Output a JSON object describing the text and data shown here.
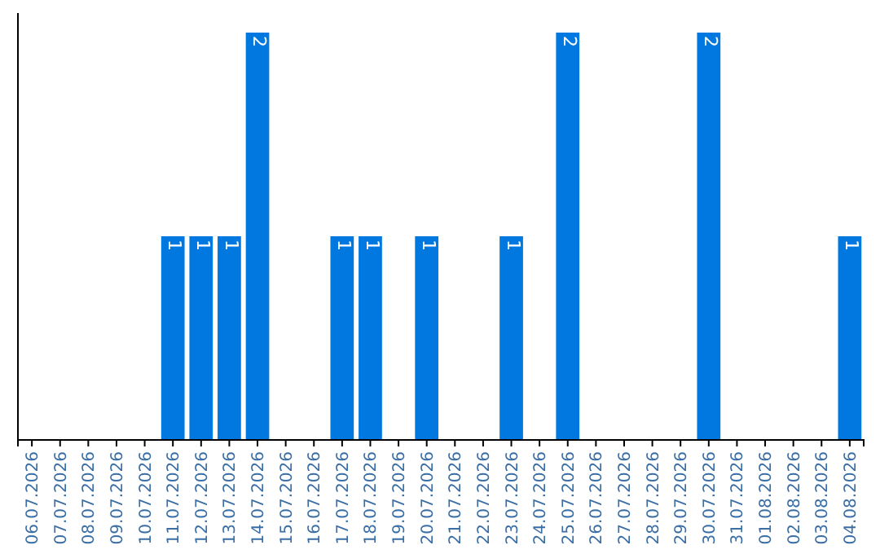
{
  "chart_data": {
    "type": "bar",
    "categories": [
      "06.07.2026",
      "07.07.2026",
      "08.07.2026",
      "09.07.2026",
      "10.07.2026",
      "11.07.2026",
      "12.07.2026",
      "13.07.2026",
      "14.07.2026",
      "15.07.2026",
      "16.07.2026",
      "17.07.2026",
      "18.07.2026",
      "19.07.2026",
      "20.07.2026",
      "21.07.2026",
      "22.07.2026",
      "23.07.2026",
      "24.07.2026",
      "25.07.2026",
      "26.07.2026",
      "27.07.2026",
      "28.07.2026",
      "29.07.2026",
      "30.07.2026",
      "31.07.2026",
      "01.08.2026",
      "02.08.2026",
      "03.08.2026",
      "04.08.2026"
    ],
    "values": [
      0,
      0,
      0,
      0,
      0,
      1,
      1,
      1,
      2,
      0,
      0,
      1,
      1,
      0,
      1,
      0,
      0,
      1,
      0,
      2,
      0,
      0,
      0,
      0,
      2,
      0,
      0,
      0,
      0,
      1
    ],
    "value_labels": [
      null,
      null,
      null,
      null,
      null,
      "1",
      "1",
      "1",
      "2",
      null,
      null,
      "1",
      "1",
      null,
      "1",
      null,
      null,
      "1",
      null,
      "2",
      null,
      null,
      null,
      null,
      "2",
      null,
      null,
      null,
      null,
      "1"
    ],
    "color": "#0078e0"
  }
}
